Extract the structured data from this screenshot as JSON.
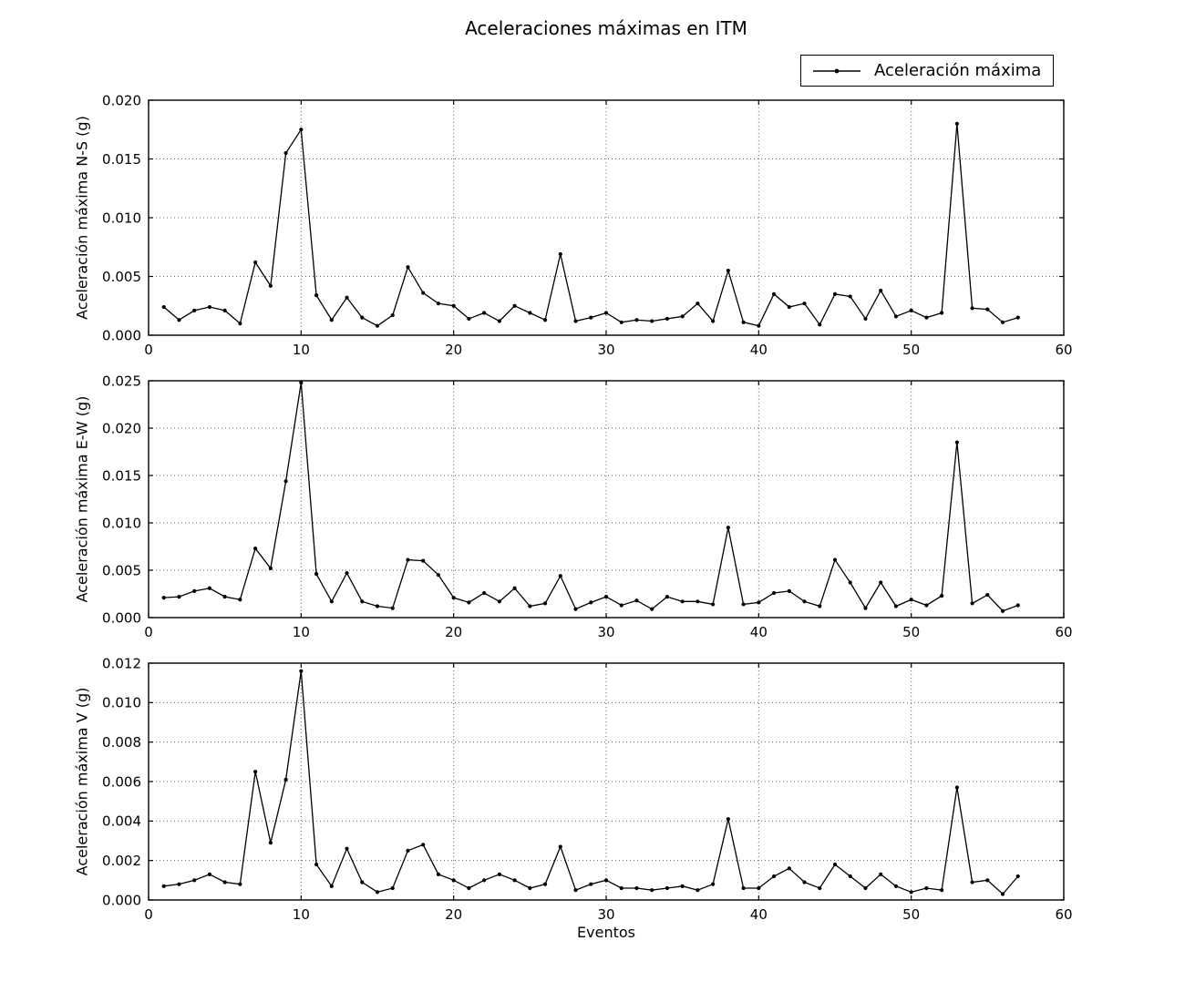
{
  "figure_title": "Aceleraciones máximas en ITM",
  "xlabel": "Eventos",
  "legend": {
    "label": "Aceleración máxima",
    "position": "upper right"
  },
  "colors": {
    "line": "#000000",
    "background": "#ffffff",
    "grid": "#666666"
  },
  "events": [
    1,
    2,
    3,
    4,
    5,
    6,
    7,
    8,
    9,
    10,
    11,
    12,
    13,
    14,
    15,
    16,
    17,
    18,
    19,
    20,
    21,
    22,
    23,
    24,
    25,
    26,
    27,
    28,
    29,
    30,
    31,
    32,
    33,
    34,
    35,
    36,
    37,
    38,
    39,
    40,
    41,
    42,
    43,
    44,
    45,
    46,
    47,
    48,
    49,
    50,
    51,
    52,
    53,
    54,
    55,
    56,
    57
  ],
  "chart_data": [
    {
      "type": "line",
      "name": "N-S",
      "ylabel": "Aceleración máxima N-S (g)",
      "xlabel": "",
      "xlim": [
        0,
        60
      ],
      "ylim": [
        0,
        0.02
      ],
      "xticks": [
        0,
        10,
        20,
        30,
        40,
        50,
        60
      ],
      "xtick_labels": [
        "0",
        "10",
        "20",
        "30",
        "40",
        "50",
        "60"
      ],
      "yticks": [
        0.0,
        0.005,
        0.01,
        0.015,
        0.02
      ],
      "ytick_labels": [
        "0.000",
        "0.005",
        "0.010",
        "0.015",
        "0.020"
      ],
      "grid": true,
      "series": [
        {
          "name": "Aceleración máxima",
          "values": [
            0.0024,
            0.0013,
            0.0021,
            0.0024,
            0.0021,
            0.001,
            0.0062,
            0.0042,
            0.0155,
            0.0175,
            0.0034,
            0.0013,
            0.0032,
            0.0015,
            0.0008,
            0.0017,
            0.0058,
            0.0036,
            0.0027,
            0.0025,
            0.0014,
            0.0019,
            0.0012,
            0.0025,
            0.0019,
            0.0013,
            0.0069,
            0.0012,
            0.0015,
            0.0019,
            0.0011,
            0.0013,
            0.0012,
            0.0014,
            0.0016,
            0.0027,
            0.0012,
            0.0055,
            0.0011,
            0.0008,
            0.0035,
            0.0024,
            0.0027,
            0.0009,
            0.0035,
            0.0033,
            0.0014,
            0.0038,
            0.0016,
            0.0021,
            0.0015,
            0.0019,
            0.018,
            0.0023,
            0.0022,
            0.0011,
            0.0015
          ]
        }
      ]
    },
    {
      "type": "line",
      "name": "E-W",
      "ylabel": "Aceleración máxima E-W (g)",
      "xlabel": "",
      "xlim": [
        0,
        60
      ],
      "ylim": [
        0,
        0.025
      ],
      "xticks": [
        0,
        10,
        20,
        30,
        40,
        50,
        60
      ],
      "xtick_labels": [
        "0",
        "10",
        "20",
        "30",
        "40",
        "50",
        "60"
      ],
      "yticks": [
        0.0,
        0.005,
        0.01,
        0.015,
        0.02,
        0.025
      ],
      "ytick_labels": [
        "0.000",
        "0.005",
        "0.010",
        "0.015",
        "0.020",
        "0.025"
      ],
      "grid": true,
      "series": [
        {
          "name": "Aceleración máxima",
          "values": [
            0.0021,
            0.0022,
            0.0028,
            0.0031,
            0.0022,
            0.0019,
            0.0073,
            0.0052,
            0.0144,
            0.0248,
            0.0046,
            0.0017,
            0.0047,
            0.0017,
            0.0012,
            0.001,
            0.0061,
            0.006,
            0.0045,
            0.0021,
            0.0016,
            0.0026,
            0.0017,
            0.0031,
            0.0012,
            0.0015,
            0.0044,
            0.0009,
            0.0016,
            0.0022,
            0.0013,
            0.0018,
            0.0009,
            0.0022,
            0.0017,
            0.0017,
            0.0014,
            0.0095,
            0.0014,
            0.0016,
            0.0026,
            0.0028,
            0.0017,
            0.0012,
            0.0061,
            0.0037,
            0.001,
            0.0037,
            0.0012,
            0.0019,
            0.0013,
            0.0023,
            0.0185,
            0.0015,
            0.0024,
            0.0007,
            0.0013
          ]
        }
      ]
    },
    {
      "type": "line",
      "name": "V",
      "ylabel": "Aceleración máxima V (g)",
      "xlabel": "Eventos",
      "xlim": [
        0,
        60
      ],
      "ylim": [
        0,
        0.012
      ],
      "xticks": [
        0,
        10,
        20,
        30,
        40,
        50,
        60
      ],
      "xtick_labels": [
        "0",
        "10",
        "20",
        "30",
        "40",
        "50",
        "60"
      ],
      "yticks": [
        0.0,
        0.002,
        0.004,
        0.006,
        0.008,
        0.01,
        0.012
      ],
      "ytick_labels": [
        "0.000",
        "0.002",
        "0.004",
        "0.006",
        "0.008",
        "0.010",
        "0.012"
      ],
      "grid": true,
      "series": [
        {
          "name": "Aceleración máxima",
          "values": [
            0.0007,
            0.0008,
            0.001,
            0.0013,
            0.0009,
            0.0008,
            0.0065,
            0.0029,
            0.0061,
            0.0116,
            0.0018,
            0.0007,
            0.0026,
            0.0009,
            0.0004,
            0.0006,
            0.0025,
            0.0028,
            0.0013,
            0.001,
            0.0006,
            0.001,
            0.0013,
            0.001,
            0.0006,
            0.0008,
            0.0027,
            0.0005,
            0.0008,
            0.001,
            0.0006,
            0.0006,
            0.0005,
            0.0006,
            0.0007,
            0.0005,
            0.0008,
            0.0041,
            0.0006,
            0.0006,
            0.0012,
            0.0016,
            0.0009,
            0.0006,
            0.0018,
            0.0012,
            0.0006,
            0.0013,
            0.0007,
            0.0004,
            0.0006,
            0.0005,
            0.0057,
            0.0009,
            0.001,
            0.0003,
            0.0012
          ]
        }
      ]
    }
  ]
}
